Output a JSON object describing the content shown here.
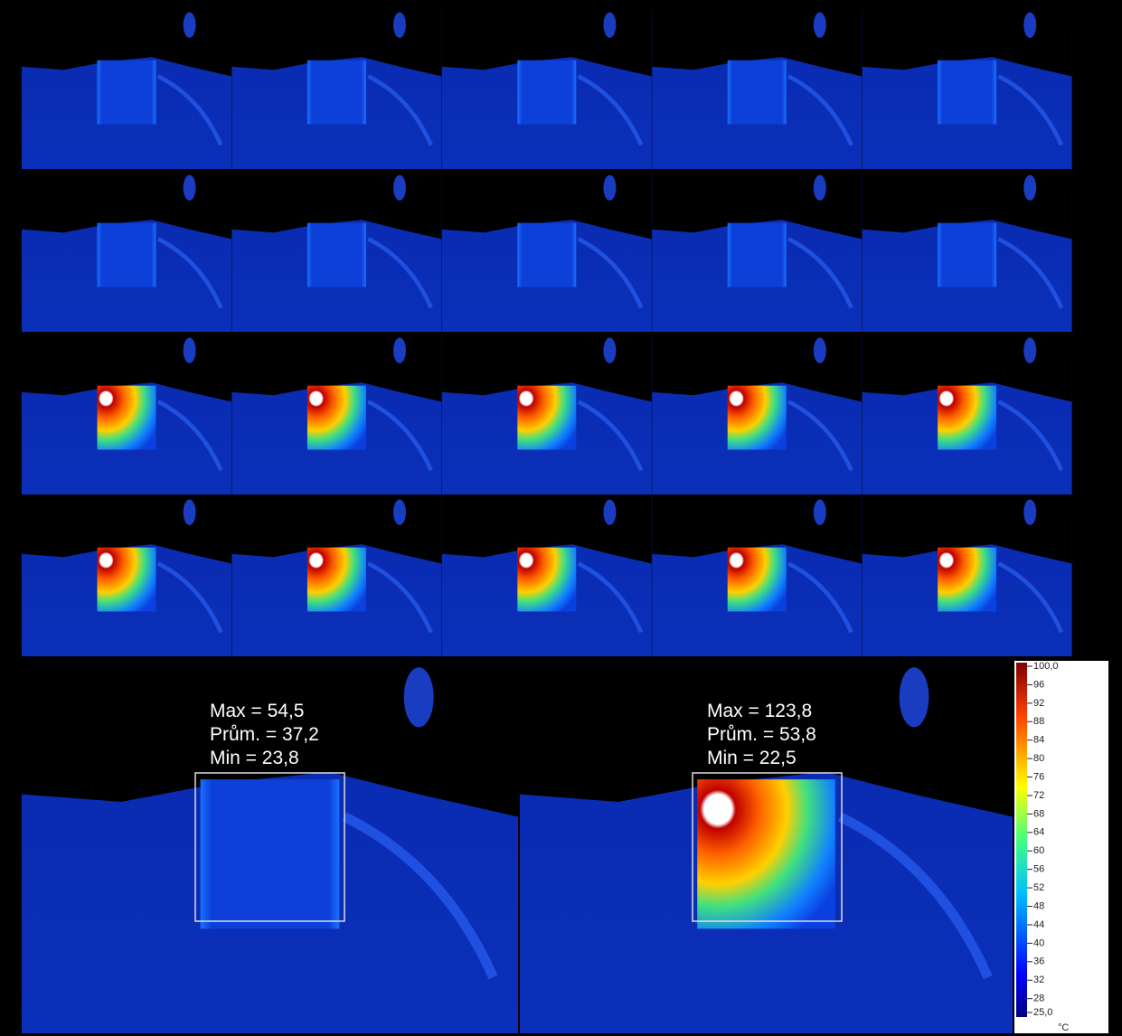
{
  "panels": [
    {
      "lines": [
        "Max = 54,5",
        "Prům. = 37,2",
        "Min = 23,8"
      ]
    },
    {
      "lines": [
        "Max = 123,8",
        "Prům. = 53,8",
        "Min = 22,5"
      ]
    }
  ],
  "colorbar": {
    "ticks": [
      {
        "value": 100,
        "label": "100,0"
      },
      96,
      92,
      88,
      84,
      80,
      76,
      72,
      68,
      64,
      60,
      56,
      52,
      48,
      44,
      40,
      36,
      32,
      28,
      {
        "value": 25,
        "label": "25,0"
      }
    ],
    "unit": "°C"
  }
}
